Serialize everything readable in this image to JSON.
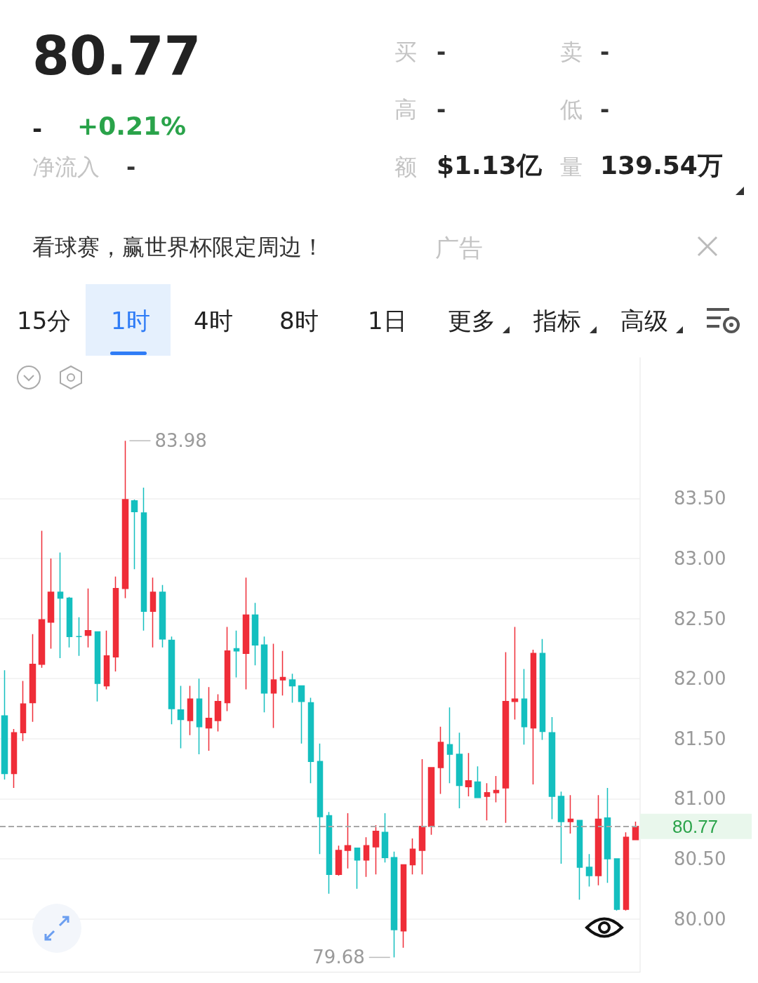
{
  "chart_data": {
    "type": "candlestick",
    "annotations": [
      "80.77",
      "-",
      "+0.21%",
      "净流入",
      "-",
      "买",
      "-",
      "卖",
      "-",
      "高",
      "-",
      "低",
      "-",
      "额",
      "$1.13亿",
      "量",
      "139.54万",
      "看球赛，赢世界杯限定周边！",
      "广告",
      "15分",
      "1时",
      "4时",
      "8时",
      "1日",
      "更多",
      "指标",
      "高级",
      "83.98",
      "79.68"
    ],
    "categories": [
      null,
      null,
      null,
      null,
      null,
      null,
      null,
      null,
      null,
      null,
      null,
      null,
      null,
      null,
      null,
      null,
      null,
      null,
      null,
      null,
      null,
      null,
      null,
      null,
      null,
      null,
      null,
      null,
      null,
      null,
      null,
      null,
      null,
      null,
      null,
      null,
      null,
      null,
      null,
      null,
      null,
      null,
      null,
      null,
      null,
      null,
      null,
      null,
      null,
      null,
      null,
      null,
      null,
      null,
      null,
      null,
      null,
      null,
      null,
      null,
      null,
      null,
      null,
      null,
      null,
      null,
      null,
      null,
      null
    ],
    "ohlc": [
      [
        81.69,
        82.07,
        81.16,
        81.21
      ],
      [
        81.21,
        81.58,
        81.09,
        81.55
      ],
      [
        81.55,
        81.98,
        81.48,
        81.79
      ],
      [
        81.8,
        82.37,
        81.64,
        82.12
      ],
      [
        82.12,
        83.23,
        82.09,
        82.49
      ],
      [
        82.47,
        83.0,
        82.25,
        82.72
      ],
      [
        82.72,
        83.05,
        82.17,
        82.67
      ],
      [
        82.67,
        82.68,
        82.26,
        82.35
      ],
      [
        82.35,
        82.51,
        82.19,
        82.35
      ],
      [
        82.36,
        82.75,
        82.26,
        82.4
      ],
      [
        82.39,
        82.39,
        81.81,
        81.96
      ],
      [
        81.94,
        82.4,
        81.91,
        82.19
      ],
      [
        82.18,
        82.85,
        82.06,
        82.75
      ],
      [
        82.75,
        83.98,
        82.67,
        83.49
      ],
      [
        83.48,
        83.49,
        82.91,
        83.39
      ],
      [
        83.38,
        83.59,
        82.4,
        82.56
      ],
      [
        82.56,
        82.84,
        82.26,
        82.72
      ],
      [
        82.72,
        82.78,
        82.26,
        82.33
      ],
      [
        82.32,
        82.35,
        81.62,
        81.75
      ],
      [
        81.74,
        81.94,
        81.42,
        81.66
      ],
      [
        81.65,
        81.94,
        81.53,
        81.83
      ],
      [
        81.83,
        82.0,
        81.37,
        81.6
      ],
      [
        81.59,
        81.93,
        81.4,
        81.67
      ],
      [
        81.65,
        81.87,
        81.56,
        81.81
      ],
      [
        81.8,
        82.43,
        81.73,
        82.23
      ],
      [
        82.25,
        82.4,
        82.01,
        82.23
      ],
      [
        82.21,
        82.84,
        81.91,
        82.53
      ],
      [
        82.53,
        82.63,
        82.11,
        82.28
      ],
      [
        82.28,
        82.35,
        81.72,
        81.88
      ],
      [
        81.88,
        82.29,
        81.59,
        81.99
      ],
      [
        81.99,
        82.23,
        81.86,
        82.01
      ],
      [
        81.99,
        82.04,
        81.8,
        81.94
      ],
      [
        81.94,
        81.94,
        81.46,
        81.81
      ],
      [
        81.8,
        81.84,
        81.13,
        81.31
      ],
      [
        81.31,
        81.46,
        80.54,
        80.85
      ],
      [
        80.86,
        80.89,
        80.21,
        80.37
      ],
      [
        80.37,
        80.61,
        80.36,
        80.57
      ],
      [
        80.57,
        80.88,
        80.42,
        80.61
      ],
      [
        80.59,
        80.59,
        80.25,
        80.49
      ],
      [
        80.49,
        80.68,
        80.35,
        80.61
      ],
      [
        80.6,
        80.78,
        80.37,
        80.73
      ],
      [
        80.72,
        80.88,
        80.47,
        80.51
      ],
      [
        80.51,
        80.56,
        79.68,
        79.91
      ],
      [
        79.9,
        80.45,
        79.76,
        80.45
      ],
      [
        80.45,
        80.67,
        80.37,
        80.58
      ],
      [
        80.57,
        81.33,
        80.37,
        80.77
      ],
      [
        80.77,
        81.26,
        80.7,
        81.26
      ],
      [
        81.26,
        81.6,
        81.04,
        81.47
      ],
      [
        81.45,
        81.76,
        81.13,
        81.37
      ],
      [
        81.37,
        81.55,
        80.92,
        81.11
      ],
      [
        81.1,
        81.38,
        81.02,
        81.15
      ],
      [
        81.14,
        81.27,
        81.01,
        81.01
      ],
      [
        81.02,
        81.13,
        80.82,
        81.05
      ],
      [
        81.05,
        81.19,
        80.97,
        81.07
      ],
      [
        81.09,
        82.22,
        80.8,
        81.81
      ],
      [
        81.81,
        82.43,
        81.66,
        81.83
      ],
      [
        81.83,
        82.08,
        81.45,
        81.6
      ],
      [
        81.59,
        82.24,
        81.12,
        82.21
      ],
      [
        82.21,
        82.33,
        81.49,
        81.56
      ],
      [
        81.55,
        81.68,
        80.83,
        81.02
      ],
      [
        81.02,
        81.06,
        80.46,
        80.81
      ],
      [
        80.81,
        81.03,
        80.71,
        80.83
      ],
      [
        80.82,
        80.82,
        80.16,
        80.43
      ],
      [
        80.43,
        80.54,
        80.27,
        80.36
      ],
      [
        80.36,
        81.03,
        80.28,
        80.83
      ],
      [
        80.84,
        81.09,
        80.3,
        80.5
      ],
      [
        80.5,
        80.5,
        80.07,
        80.08
      ],
      [
        80.08,
        80.72,
        80.07,
        80.68
      ],
      [
        80.66,
        80.81,
        80.66,
        80.77
      ]
    ],
    "colors": [
      "#14bfbf",
      "#ef2d38",
      "#ef2d38",
      "#ef2d38",
      "#ef2d38",
      "#ef2d38",
      "#14bfbf",
      "#14bfbf",
      "#14bfbf",
      "#ef2d38",
      "#14bfbf",
      "#ef2d38",
      "#ef2d38",
      "#ef2d38",
      "#14bfbf",
      "#14bfbf",
      "#ef2d38",
      "#14bfbf",
      "#14bfbf",
      "#14bfbf",
      "#ef2d38",
      "#14bfbf",
      "#ef2d38",
      "#ef2d38",
      "#ef2d38",
      "#14bfbf",
      "#ef2d38",
      "#14bfbf",
      "#14bfbf",
      "#ef2d38",
      "#ef2d38",
      "#14bfbf",
      "#14bfbf",
      "#14bfbf",
      "#14bfbf",
      "#14bfbf",
      "#ef2d38",
      "#ef2d38",
      "#14bfbf",
      "#ef2d38",
      "#ef2d38",
      "#14bfbf",
      "#14bfbf",
      "#ef2d38",
      "#ef2d38",
      "#ef2d38",
      "#ef2d38",
      "#ef2d38",
      "#14bfbf",
      "#14bfbf",
      "#ef2d38",
      "#14bfbf",
      "#ef2d38",
      "#ef2d38",
      "#ef2d38",
      "#ef2d38",
      "#14bfbf",
      "#ef2d38",
      "#14bfbf",
      "#14bfbf",
      "#14bfbf",
      "#ef2d38",
      "#14bfbf",
      "#14bfbf",
      "#ef2d38",
      "#14bfbf",
      "#14bfbf",
      "#ef2d38",
      "#ef2d38"
    ],
    "ylim": [
      79.56,
      84.67
    ],
    "yticks": [
      {
        "value": 80,
        "label": "80.00"
      },
      {
        "value": 80.5,
        "label": "80.50"
      },
      {
        "value": 81,
        "label": "81.00"
      },
      {
        "value": 81.5,
        "label": "81.50"
      },
      {
        "value": 82,
        "label": "82.00"
      },
      {
        "value": 82.5,
        "label": "82.50"
      },
      {
        "value": 83,
        "label": "83.00"
      },
      {
        "value": 83.5,
        "label": "83.50"
      }
    ],
    "ref_lines": [
      {
        "axis": "y",
        "value": 80.77,
        "label": "80.77",
        "color": "#a8a8a8",
        "line_style": "dashed"
      }
    ],
    "grid": "y",
    "tick_labels": "y"
  }
}
